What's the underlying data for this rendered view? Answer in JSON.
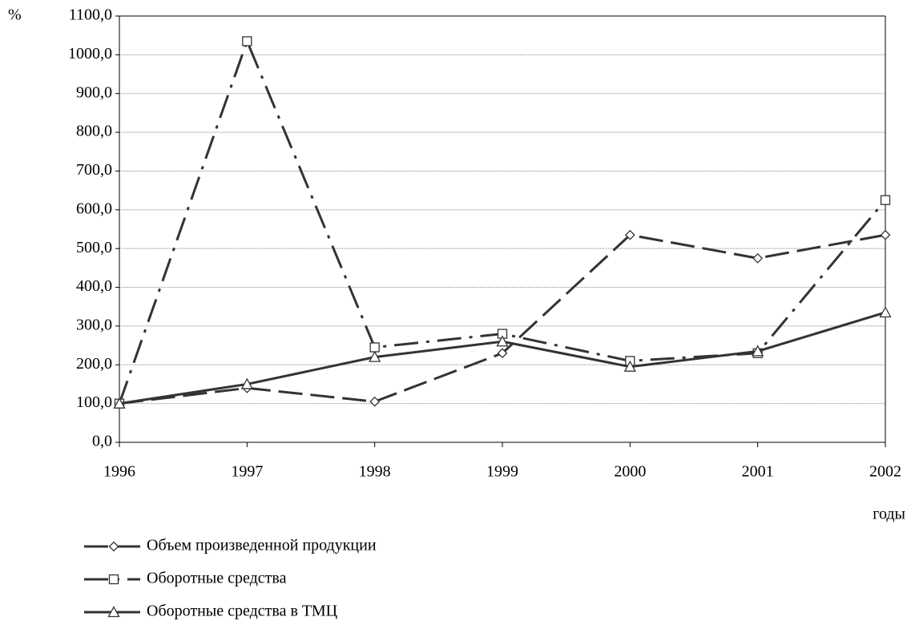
{
  "chart_data": {
    "type": "line",
    "y_axis_label": "%",
    "x_axis_label": "годы",
    "categories": [
      "1996",
      "1997",
      "1998",
      "1999",
      "2000",
      "2001",
      "2002"
    ],
    "series": [
      {
        "name": "Объем произведенной продукции",
        "color": "#333333",
        "marker": "diamond",
        "line_style": "dash",
        "values": [
          100,
          140,
          105,
          230,
          535,
          475,
          535
        ]
      },
      {
        "name": "Оборотные средства",
        "color": "#333333",
        "marker": "square",
        "line_style": "dashdot",
        "values": [
          100,
          1035,
          245,
          280,
          210,
          230,
          625
        ]
      },
      {
        "name": "Оборотные средства в ТМЦ",
        "color": "#333333",
        "marker": "triangle",
        "line_style": "solid",
        "values": [
          100,
          150,
          220,
          260,
          195,
          235,
          335
        ]
      }
    ],
    "ylim": [
      0,
      1100
    ],
    "yticks": [
      {
        "value": 0,
        "label": "0,0"
      },
      {
        "value": 100,
        "label": "100,0"
      },
      {
        "value": 200,
        "label": "200,0"
      },
      {
        "value": 300,
        "label": "300,0"
      },
      {
        "value": 400,
        "label": "400,0"
      },
      {
        "value": 500,
        "label": "500,0"
      },
      {
        "value": 600,
        "label": "600,0"
      },
      {
        "value": 700,
        "label": "700,0"
      },
      {
        "value": 800,
        "label": "800,0"
      },
      {
        "value": 900,
        "label": "900,0"
      },
      {
        "value": 1000,
        "label": "1000,0"
      },
      {
        "value": 1100,
        "label": "1100,0"
      }
    ],
    "grid": true
  }
}
